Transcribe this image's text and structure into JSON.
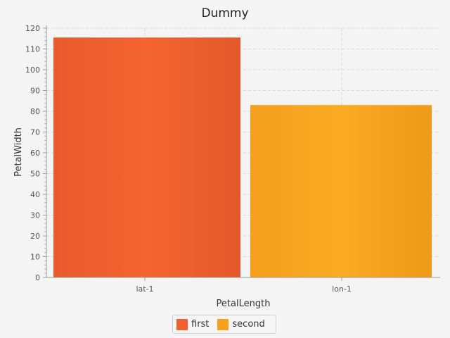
{
  "chart_data": {
    "type": "bar",
    "title": "Dummy",
    "xlabel": "PetalLength",
    "ylabel": "PetalWidth",
    "categories": [
      "lat-1",
      "lon-1"
    ],
    "series": [
      {
        "name": "first",
        "values": [
          115.5,
          null
        ],
        "color": "#f06030"
      },
      {
        "name": "second",
        "values": [
          null,
          83
        ],
        "color": "#f6a21e"
      }
    ],
    "ylim": [
      0,
      120
    ],
    "yticks": [
      "0",
      "10",
      "20",
      "30",
      "40",
      "50",
      "60",
      "70",
      "80",
      "90",
      "100",
      "110",
      "120"
    ],
    "grid": true,
    "legend_position": "bottom"
  }
}
